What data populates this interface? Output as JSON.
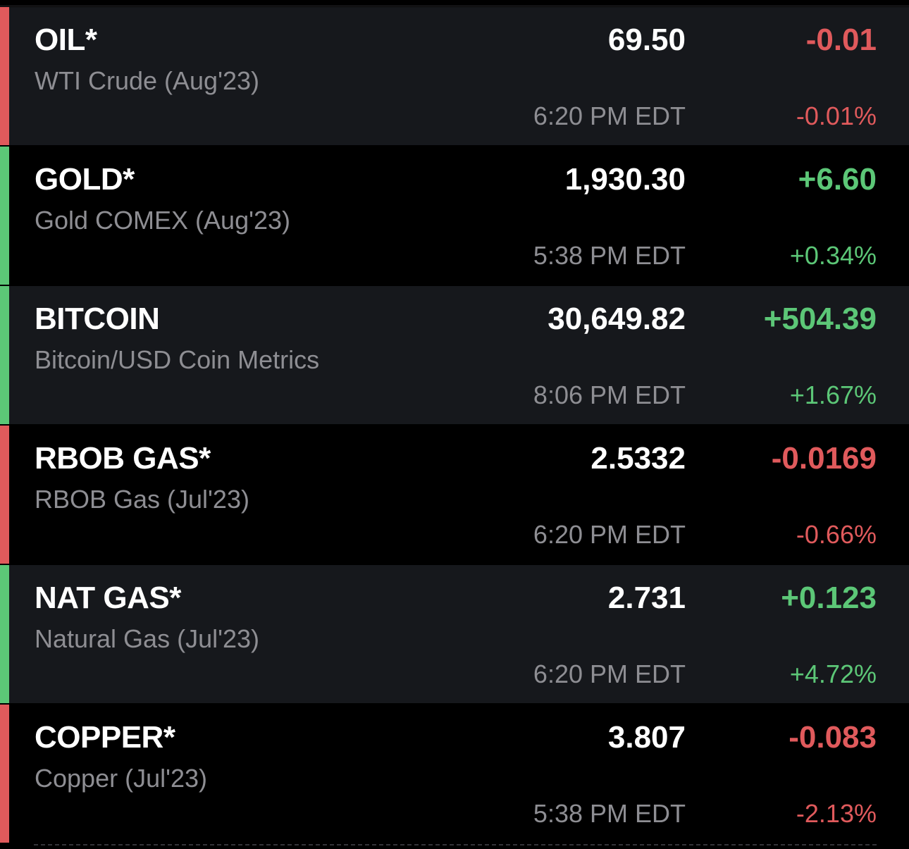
{
  "quotes": [
    {
      "symbol": "OIL*",
      "name": "WTI Crude (Aug'23)",
      "price": "69.50",
      "change": "-0.01",
      "time": "6:20 PM EDT",
      "change_pct": "-0.01%",
      "direction": "down"
    },
    {
      "symbol": "GOLD*",
      "name": "Gold COMEX (Aug'23)",
      "price": "1,930.30",
      "change": "+6.60",
      "time": "5:38 PM EDT",
      "change_pct": "+0.34%",
      "direction": "up"
    },
    {
      "symbol": "BITCOIN",
      "name": "Bitcoin/USD Coin Metrics",
      "price": "30,649.82",
      "change": "+504.39",
      "time": "8:06 PM EDT",
      "change_pct": "+1.67%",
      "direction": "up"
    },
    {
      "symbol": "RBOB GAS*",
      "name": "RBOB Gas (Jul'23)",
      "price": "2.5332",
      "change": "-0.0169",
      "time": "6:20 PM EDT",
      "change_pct": "-0.66%",
      "direction": "down"
    },
    {
      "symbol": "NAT GAS*",
      "name": "Natural Gas (Jul'23)",
      "price": "2.731",
      "change": "+0.123",
      "time": "6:20 PM EDT",
      "change_pct": "+4.72%",
      "direction": "up"
    },
    {
      "symbol": "COPPER*",
      "name": "Copper (Jul'23)",
      "price": "3.807",
      "change": "-0.083",
      "time": "5:38 PM EDT",
      "change_pct": "-2.13%",
      "direction": "down"
    }
  ],
  "colors": {
    "negative": "#e05a5c",
    "positive": "#5cc777",
    "row_shade": "#16181c",
    "row_dark": "#000000",
    "secondary_text": "#8e8e93"
  }
}
